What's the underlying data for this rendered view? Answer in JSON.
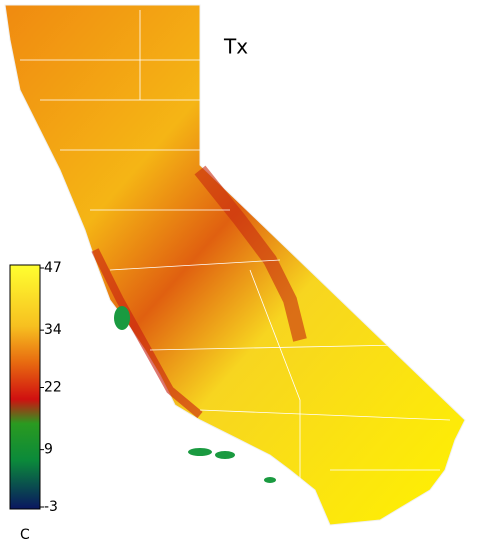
{
  "map": {
    "title": "Tx",
    "colorbar": {
      "range": [
        -3,
        47
      ],
      "ticks": [
        -3,
        9,
        22,
        34,
        47
      ],
      "unit": "C"
    }
  }
}
